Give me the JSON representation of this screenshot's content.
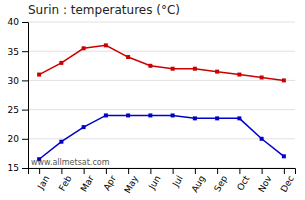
{
  "chart_data": {
    "type": "line",
    "title": "Surin : temperatures (°C)",
    "categories": [
      "Jan",
      "Feb",
      "Mar",
      "Apr",
      "May",
      "Jun",
      "Jul",
      "Aug",
      "Sep",
      "Oct",
      "Nov",
      "Dec"
    ],
    "series": [
      {
        "color": "#cc0000",
        "marker": "square",
        "values": [
          31,
          33,
          35.5,
          36,
          34,
          32.5,
          32,
          32,
          31.5,
          31,
          30.5,
          30
        ]
      },
      {
        "color": "#0000cc",
        "marker": "square",
        "values": [
          16.5,
          19.5,
          22,
          24,
          24,
          24,
          24,
          23.5,
          23.5,
          23.5,
          20,
          17
        ]
      }
    ],
    "ylim": [
      15,
      40
    ],
    "yticks": [
      15,
      20,
      25,
      30,
      35,
      40
    ],
    "grid": true,
    "annotation": "www.allmetsat.com"
  }
}
